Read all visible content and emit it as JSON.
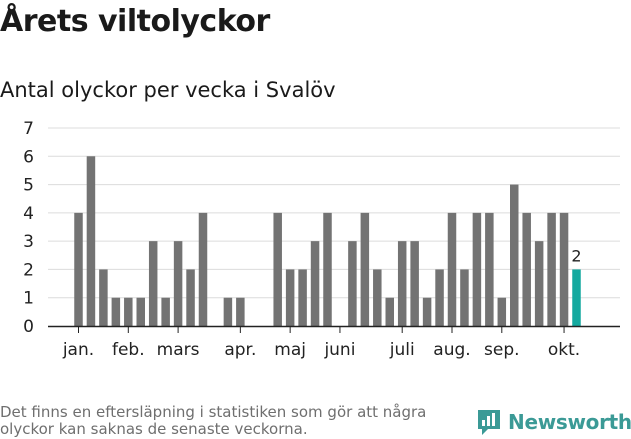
{
  "header": {
    "title": "Årets viltolyckor",
    "subtitle": "Antal olyckor per vecka i Svalöv"
  },
  "footnote": "Det finns en eftersläpning i statistiken som gör att några olyckor kan saknas de senaste veckorna.",
  "logo": {
    "text": "Newsworthy"
  },
  "colors": {
    "bar": "#737373",
    "highlight": "#14a99f",
    "grid": "#dcdcdc",
    "axis": "#222222",
    "brand": "#3b9a96"
  },
  "chart_data": {
    "type": "bar",
    "title": "Antal olyckor per vecka i Svalöv",
    "xlabel": "",
    "ylabel": "",
    "ylim": [
      0,
      7
    ],
    "y_ticks": [
      0,
      1,
      2,
      3,
      4,
      5,
      6,
      7
    ],
    "grid": true,
    "x_tick_labels": [
      {
        "label": "jan.",
        "week": 1
      },
      {
        "label": "feb.",
        "week": 5
      },
      {
        "label": "mars",
        "week": 9
      },
      {
        "label": "apr.",
        "week": 14
      },
      {
        "label": "maj",
        "week": 18
      },
      {
        "label": "juni",
        "week": 22
      },
      {
        "label": "juli",
        "week": 27
      },
      {
        "label": "aug.",
        "week": 31
      },
      {
        "label": "sep.",
        "week": 35
      },
      {
        "label": "okt.",
        "week": 40
      }
    ],
    "weeks": [
      1,
      2,
      3,
      4,
      5,
      6,
      7,
      8,
      9,
      10,
      11,
      12,
      13,
      14,
      15,
      16,
      17,
      18,
      19,
      20,
      21,
      22,
      23,
      24,
      25,
      26,
      27,
      28,
      29,
      30,
      31,
      32,
      33,
      34,
      35,
      36,
      37,
      38,
      39,
      40,
      41
    ],
    "values": [
      4,
      6,
      2,
      1,
      1,
      1,
      3,
      1,
      3,
      2,
      4,
      0,
      1,
      1,
      0,
      0,
      4,
      2,
      2,
      3,
      4,
      0,
      3,
      4,
      2,
      1,
      3,
      3,
      1,
      2,
      4,
      2,
      4,
      4,
      1,
      5,
      4,
      3,
      4,
      4,
      2
    ],
    "highlight": {
      "week": 41,
      "value": 2,
      "label": "2"
    }
  }
}
